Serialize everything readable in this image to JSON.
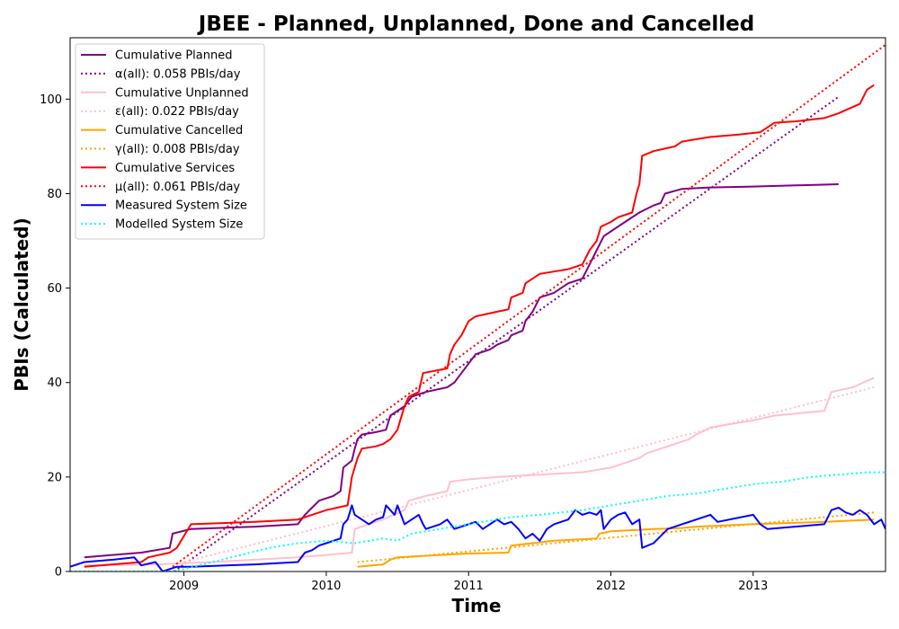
{
  "chart_data": {
    "type": "line",
    "title": "JBEE - Planned, Unplanned, Done  and Cancelled",
    "xlabel": "Time",
    "ylabel": "PBIs (Calculated)",
    "xlim": [
      2008.2,
      2013.93
    ],
    "ylim": [
      0,
      113
    ],
    "x_ticks": [
      2009,
      2010,
      2011,
      2012,
      2013
    ],
    "y_ticks": [
      0,
      20,
      40,
      60,
      80,
      100
    ],
    "grid": false,
    "legend_position": "top-left",
    "series": [
      {
        "name": "Cumulative Planned",
        "color": "#800080",
        "style": "solid",
        "points": [
          [
            2008.3,
            3
          ],
          [
            2008.7,
            4
          ],
          [
            2008.9,
            5
          ],
          [
            2008.92,
            8
          ],
          [
            2009.05,
            9
          ],
          [
            2009.5,
            9.5
          ],
          [
            2009.8,
            10
          ],
          [
            2009.85,
            12
          ],
          [
            2009.9,
            13.5
          ],
          [
            2009.95,
            15
          ],
          [
            2010.05,
            16
          ],
          [
            2010.1,
            17
          ],
          [
            2010.12,
            22
          ],
          [
            2010.18,
            23.5
          ],
          [
            2010.2,
            26
          ],
          [
            2010.22,
            28
          ],
          [
            2010.25,
            29
          ],
          [
            2010.35,
            29.5
          ],
          [
            2010.42,
            30
          ],
          [
            2010.45,
            33
          ],
          [
            2010.55,
            35
          ],
          [
            2010.6,
            37
          ],
          [
            2010.7,
            38
          ],
          [
            2010.85,
            39
          ],
          [
            2010.9,
            40
          ],
          [
            2011.0,
            44
          ],
          [
            2011.05,
            46
          ],
          [
            2011.15,
            47
          ],
          [
            2011.2,
            48
          ],
          [
            2011.28,
            49
          ],
          [
            2011.3,
            50
          ],
          [
            2011.38,
            51
          ],
          [
            2011.4,
            53
          ],
          [
            2011.45,
            55
          ],
          [
            2011.5,
            58
          ],
          [
            2011.6,
            59
          ],
          [
            2011.65,
            60
          ],
          [
            2011.7,
            61
          ],
          [
            2011.8,
            62
          ],
          [
            2011.85,
            65
          ],
          [
            2011.9,
            68
          ],
          [
            2011.95,
            71
          ],
          [
            2012.0,
            72
          ],
          [
            2012.1,
            74
          ],
          [
            2012.2,
            76
          ],
          [
            2012.3,
            77.5
          ],
          [
            2012.35,
            78
          ],
          [
            2012.38,
            80
          ],
          [
            2012.5,
            81
          ],
          [
            2012.7,
            81.3
          ],
          [
            2013.0,
            81.5
          ],
          [
            2013.6,
            82
          ]
        ]
      },
      {
        "name": "α(all): 0.058 PBIs/day",
        "color": "#800080",
        "style": "dotted",
        "points": [
          [
            2008.93,
            0
          ],
          [
            2013.6,
            100.5
          ]
        ]
      },
      {
        "name": "Cumulative Unplanned",
        "color": "#ffc0cb",
        "style": "solid",
        "points": [
          [
            2008.3,
            1.3
          ],
          [
            2008.8,
            1.5
          ],
          [
            2009.2,
            2
          ],
          [
            2009.8,
            3
          ],
          [
            2010.0,
            3.5
          ],
          [
            2010.18,
            4
          ],
          [
            2010.2,
            9
          ],
          [
            2010.4,
            11
          ],
          [
            2010.55,
            13
          ],
          [
            2010.58,
            15
          ],
          [
            2010.7,
            16
          ],
          [
            2010.85,
            17
          ],
          [
            2010.87,
            19
          ],
          [
            2011.0,
            19.5
          ],
          [
            2011.2,
            20
          ],
          [
            2011.5,
            20.5
          ],
          [
            2011.8,
            21
          ],
          [
            2012.0,
            22
          ],
          [
            2012.2,
            24
          ],
          [
            2012.25,
            25
          ],
          [
            2012.35,
            26
          ],
          [
            2012.55,
            28
          ],
          [
            2012.6,
            29
          ],
          [
            2012.7,
            30.5
          ],
          [
            2012.8,
            31
          ],
          [
            2013.0,
            32
          ],
          [
            2013.15,
            33
          ],
          [
            2013.5,
            34
          ],
          [
            2013.55,
            38
          ],
          [
            2013.7,
            39
          ],
          [
            2013.85,
            41
          ]
        ]
      },
      {
        "name": "ε(all): 0.022 PBIs/day",
        "color": "#ffc0cb",
        "style": "dotted",
        "points": [
          [
            2009.0,
            2
          ],
          [
            2013.85,
            39
          ]
        ]
      },
      {
        "name": "Cumulative Cancelled",
        "color": "#ffa500",
        "style": "solid",
        "points": [
          [
            2010.22,
            1
          ],
          [
            2010.4,
            1.5
          ],
          [
            2010.45,
            2.5
          ],
          [
            2010.5,
            3
          ],
          [
            2010.8,
            3.5
          ],
          [
            2011.0,
            3.8
          ],
          [
            2011.28,
            4
          ],
          [
            2011.3,
            5.5
          ],
          [
            2011.6,
            6.5
          ],
          [
            2011.9,
            7
          ],
          [
            2011.92,
            8
          ],
          [
            2012.0,
            8.5
          ],
          [
            2012.3,
            9
          ],
          [
            2012.5,
            9.2
          ],
          [
            2012.6,
            9.5
          ],
          [
            2013.0,
            10
          ],
          [
            2013.5,
            10.5
          ],
          [
            2013.85,
            11
          ]
        ]
      },
      {
        "name": "γ(all): 0.008 PBIs/day",
        "color": "#ffa500",
        "style": "dotted",
        "points": [
          [
            2010.22,
            2
          ],
          [
            2013.85,
            12.5
          ]
        ]
      },
      {
        "name": "Cumulative Services",
        "color": "#ff0000",
        "style": "solid",
        "points": [
          [
            2008.3,
            1
          ],
          [
            2008.7,
            2
          ],
          [
            2008.75,
            3
          ],
          [
            2008.9,
            4
          ],
          [
            2008.95,
            5
          ],
          [
            2009.05,
            10
          ],
          [
            2009.5,
            10.5
          ],
          [
            2009.8,
            11
          ],
          [
            2010.0,
            13
          ],
          [
            2010.15,
            14
          ],
          [
            2010.18,
            20
          ],
          [
            2010.22,
            24
          ],
          [
            2010.25,
            26
          ],
          [
            2010.35,
            26.5
          ],
          [
            2010.4,
            27
          ],
          [
            2010.45,
            28
          ],
          [
            2010.5,
            30
          ],
          [
            2010.52,
            32
          ],
          [
            2010.55,
            35
          ],
          [
            2010.58,
            37
          ],
          [
            2010.65,
            38
          ],
          [
            2010.68,
            42
          ],
          [
            2010.85,
            43
          ],
          [
            2010.87,
            46
          ],
          [
            2010.9,
            48
          ],
          [
            2010.95,
            50
          ],
          [
            2011.0,
            53
          ],
          [
            2011.05,
            54
          ],
          [
            2011.2,
            55
          ],
          [
            2011.28,
            55.5
          ],
          [
            2011.3,
            58
          ],
          [
            2011.38,
            59
          ],
          [
            2011.4,
            61
          ],
          [
            2011.45,
            62
          ],
          [
            2011.5,
            63
          ],
          [
            2011.6,
            63.5
          ],
          [
            2011.7,
            64
          ],
          [
            2011.8,
            65
          ],
          [
            2011.85,
            68
          ],
          [
            2011.9,
            70
          ],
          [
            2011.93,
            73
          ],
          [
            2012.0,
            74
          ],
          [
            2012.05,
            75
          ],
          [
            2012.15,
            76
          ],
          [
            2012.18,
            80
          ],
          [
            2012.2,
            82
          ],
          [
            2012.22,
            88
          ],
          [
            2012.3,
            89
          ],
          [
            2012.45,
            90
          ],
          [
            2012.5,
            91
          ],
          [
            2012.7,
            92
          ],
          [
            2012.9,
            92.5
          ],
          [
            2013.05,
            93
          ],
          [
            2013.15,
            95
          ],
          [
            2013.3,
            95.3
          ],
          [
            2013.5,
            96
          ],
          [
            2013.6,
            97
          ],
          [
            2013.75,
            99
          ],
          [
            2013.8,
            102
          ],
          [
            2013.85,
            103
          ]
        ]
      },
      {
        "name": "μ(all): 0.061 PBIs/day",
        "color": "#ff0000",
        "style": "dotted",
        "points": [
          [
            2008.92,
            1
          ],
          [
            2013.93,
            111.5
          ]
        ]
      },
      {
        "name": "Measured System Size",
        "color": "#0000ff",
        "style": "solid",
        "points": [
          [
            2008.2,
            1
          ],
          [
            2008.3,
            2
          ],
          [
            2008.5,
            2.5
          ],
          [
            2008.65,
            3
          ],
          [
            2008.7,
            1.3
          ],
          [
            2008.8,
            2
          ],
          [
            2008.85,
            0
          ],
          [
            2008.95,
            1
          ],
          [
            2009.05,
            1
          ],
          [
            2009.5,
            1.5
          ],
          [
            2009.8,
            2
          ],
          [
            2009.85,
            4
          ],
          [
            2009.9,
            4.5
          ],
          [
            2009.95,
            5.5
          ],
          [
            2010.0,
            6
          ],
          [
            2010.1,
            7
          ],
          [
            2010.12,
            10
          ],
          [
            2010.15,
            11
          ],
          [
            2010.18,
            14
          ],
          [
            2010.2,
            12
          ],
          [
            2010.25,
            11
          ],
          [
            2010.3,
            10
          ],
          [
            2010.35,
            11
          ],
          [
            2010.4,
            11.5
          ],
          [
            2010.42,
            14
          ],
          [
            2010.45,
            13
          ],
          [
            2010.48,
            12
          ],
          [
            2010.5,
            14
          ],
          [
            2010.55,
            10
          ],
          [
            2010.6,
            11
          ],
          [
            2010.65,
            12
          ],
          [
            2010.68,
            10
          ],
          [
            2010.7,
            9
          ],
          [
            2010.8,
            10
          ],
          [
            2010.85,
            11
          ],
          [
            2010.9,
            9
          ],
          [
            2011.0,
            10
          ],
          [
            2011.05,
            10.5
          ],
          [
            2011.1,
            9
          ],
          [
            2011.15,
            10
          ],
          [
            2011.2,
            11
          ],
          [
            2011.25,
            10
          ],
          [
            2011.3,
            10.5
          ],
          [
            2011.35,
            9
          ],
          [
            2011.4,
            7
          ],
          [
            2011.45,
            8
          ],
          [
            2011.5,
            6.5
          ],
          [
            2011.55,
            9
          ],
          [
            2011.6,
            10
          ],
          [
            2011.7,
            11
          ],
          [
            2011.75,
            13
          ],
          [
            2011.8,
            12
          ],
          [
            2011.85,
            12.5
          ],
          [
            2011.9,
            12
          ],
          [
            2011.93,
            13
          ],
          [
            2011.95,
            9
          ],
          [
            2012.0,
            11
          ],
          [
            2012.05,
            12
          ],
          [
            2012.1,
            12.5
          ],
          [
            2012.15,
            10
          ],
          [
            2012.2,
            11
          ],
          [
            2012.22,
            5
          ],
          [
            2012.3,
            6
          ],
          [
            2012.35,
            7.5
          ],
          [
            2012.4,
            9
          ],
          [
            2012.45,
            9.5
          ],
          [
            2012.5,
            10
          ],
          [
            2012.7,
            12
          ],
          [
            2012.75,
            10.5
          ],
          [
            2013.0,
            12
          ],
          [
            2013.05,
            10
          ],
          [
            2013.1,
            9
          ],
          [
            2013.5,
            10
          ],
          [
            2013.55,
            13
          ],
          [
            2013.6,
            13.5
          ],
          [
            2013.65,
            12.5
          ],
          [
            2013.7,
            12
          ],
          [
            2013.75,
            13
          ],
          [
            2013.8,
            12
          ],
          [
            2013.85,
            10
          ],
          [
            2013.9,
            11
          ],
          [
            2013.93,
            9
          ]
        ]
      },
      {
        "name": "Modelled System Size",
        "color": "#00ffff",
        "style": "dotted",
        "points": [
          [
            2008.2,
            0
          ],
          [
            2008.9,
            0
          ],
          [
            2009.0,
            0.5
          ],
          [
            2009.2,
            2
          ],
          [
            2009.4,
            3.5
          ],
          [
            2009.6,
            5
          ],
          [
            2009.8,
            6
          ],
          [
            2010.0,
            6.5
          ],
          [
            2010.2,
            6
          ],
          [
            2010.4,
            7
          ],
          [
            2010.5,
            6.5
          ],
          [
            2010.6,
            8
          ],
          [
            2010.8,
            9
          ],
          [
            2011.0,
            10
          ],
          [
            2011.3,
            11.5
          ],
          [
            2011.5,
            12
          ],
          [
            2011.8,
            13
          ],
          [
            2012.0,
            14
          ],
          [
            2012.2,
            15
          ],
          [
            2012.4,
            16
          ],
          [
            2012.6,
            16.5
          ],
          [
            2012.8,
            17.5
          ],
          [
            2013.0,
            18.5
          ],
          [
            2013.2,
            19
          ],
          [
            2013.4,
            20
          ],
          [
            2013.6,
            20.5
          ],
          [
            2013.8,
            21
          ],
          [
            2013.93,
            21
          ]
        ]
      }
    ]
  }
}
